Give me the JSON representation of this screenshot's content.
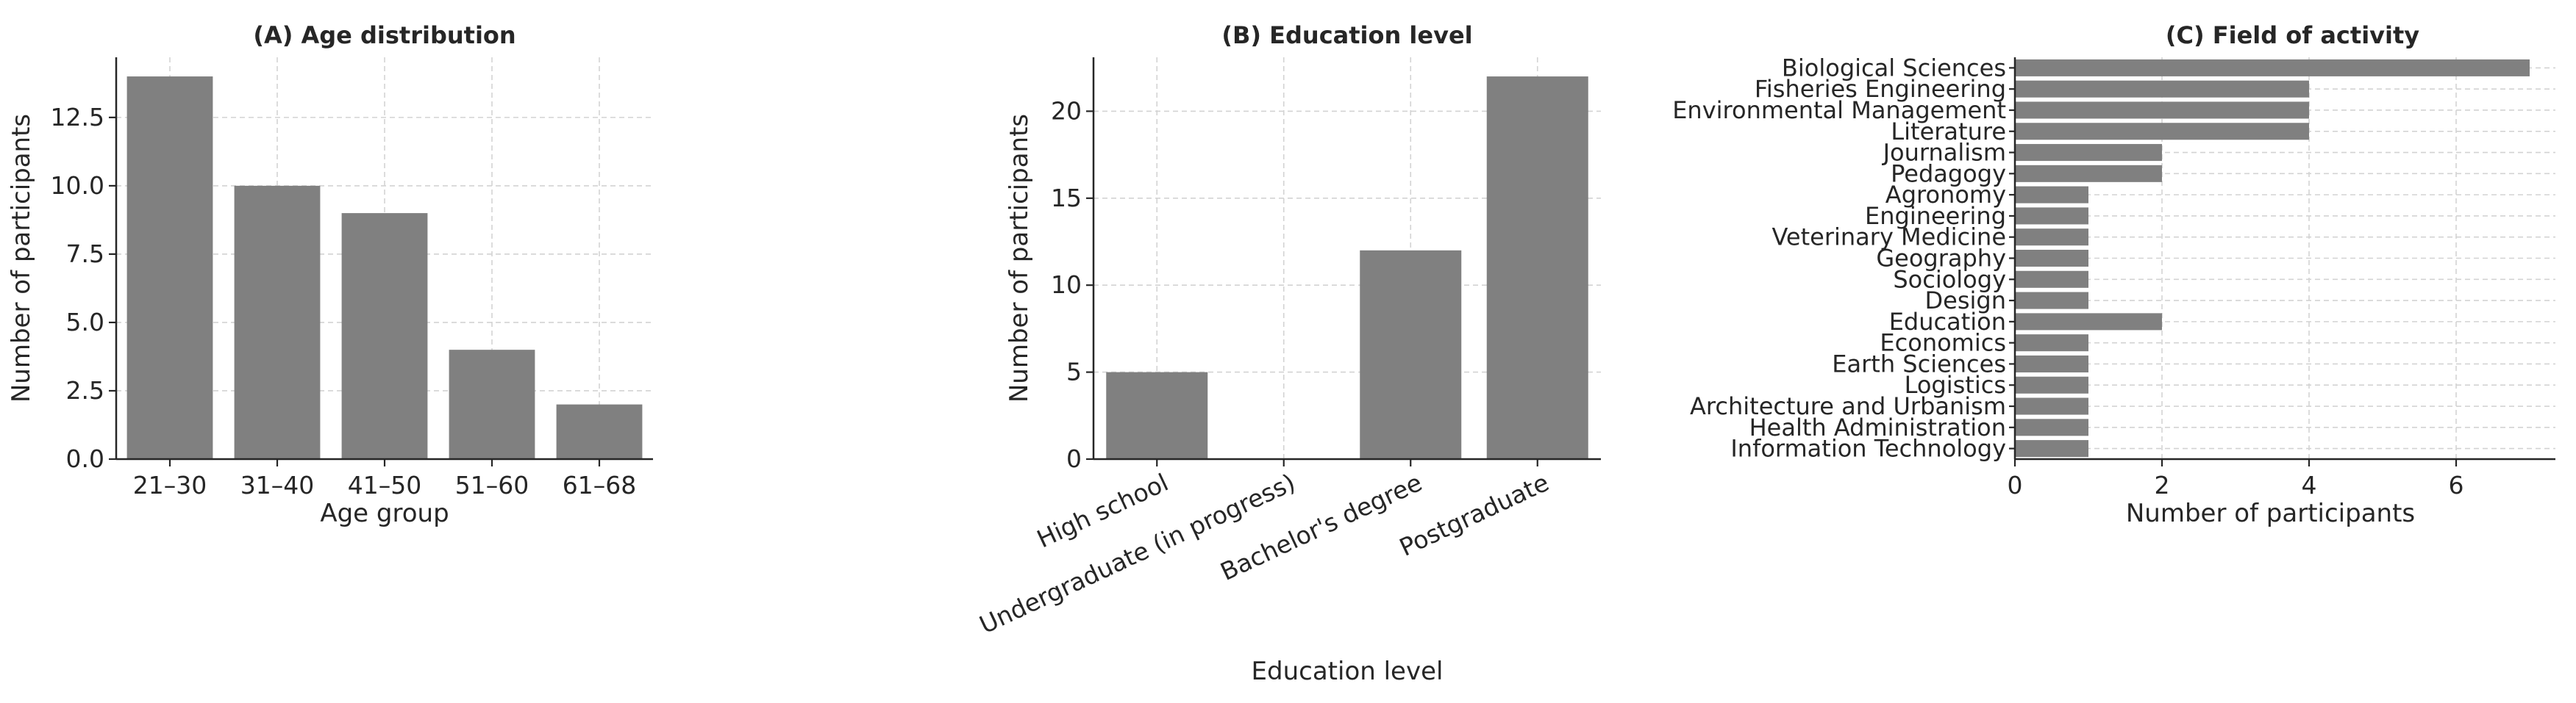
{
  "chart_data": [
    {
      "type": "bar",
      "title": "(A) Age distribution",
      "xlabel": "Age group",
      "ylabel": "Number of participants",
      "categories": [
        "21–30",
        "31–40",
        "41–50",
        "51–60",
        "61–68"
      ],
      "values": [
        14,
        10,
        9,
        4,
        2
      ],
      "ylim": [
        0,
        14.7
      ],
      "yticks": [
        0.0,
        2.5,
        5.0,
        7.5,
        10.0,
        12.5
      ],
      "ytick_labels": [
        "0.0",
        "2.5",
        "5.0",
        "7.5",
        "10.0",
        "12.5"
      ],
      "grid": true,
      "bar_color": "#808080"
    },
    {
      "type": "bar",
      "title": "(B) Education level",
      "xlabel": "Education level",
      "ylabel": "Number of participants",
      "categories": [
        "High school",
        "Undergraduate (in progress)",
        "Bachelor's degree",
        "Postgraduate"
      ],
      "values": [
        5,
        0,
        12,
        22
      ],
      "ylim": [
        0,
        23.1
      ],
      "yticks": [
        0,
        5,
        10,
        15,
        20
      ],
      "ytick_labels": [
        "0",
        "5",
        "10",
        "15",
        "20"
      ],
      "xtick_rotation": 25,
      "grid": true,
      "bar_color": "#808080"
    },
    {
      "type": "bar",
      "orientation": "horizontal",
      "title": "(C) Field of activity",
      "xlabel": "Number of participants",
      "ylabel": "",
      "categories": [
        "Biological Sciences",
        "Fisheries Engineering",
        "Environmental Management",
        "Literature",
        "Journalism",
        "Pedagogy",
        "Agronomy",
        "Engineering",
        "Veterinary Medicine",
        "Geography",
        "Sociology",
        "Design",
        "Education",
        "Economics",
        "Earth Sciences",
        "Logistics",
        "Architecture and Urbanism",
        "Health Administration",
        "Information Technology"
      ],
      "values": [
        7,
        4,
        4,
        4,
        2,
        2,
        1,
        1,
        1,
        1,
        1,
        1,
        2,
        1,
        1,
        1,
        1,
        1,
        1
      ],
      "xlim": [
        0,
        7.35
      ],
      "xticks": [
        0,
        2,
        4,
        6
      ],
      "xtick_labels": [
        "0",
        "2",
        "4",
        "6"
      ],
      "grid": true,
      "bar_color": "#808080"
    }
  ]
}
